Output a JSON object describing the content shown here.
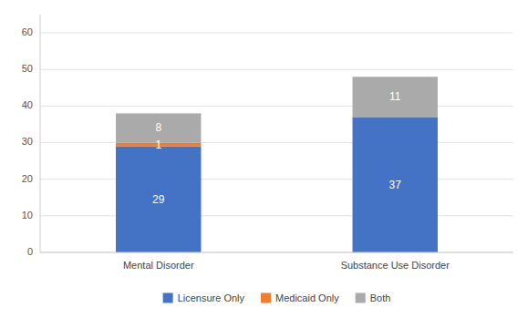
{
  "chart_data": {
    "type": "bar",
    "stacked": true,
    "categories": [
      "Mental Disorder",
      "Substance Use Disorder"
    ],
    "series": [
      {
        "name": "Licensure Only",
        "color": "#4472C4",
        "values": [
          29,
          37
        ]
      },
      {
        "name": "Medicaid Only",
        "color": "#ED7D31",
        "values": [
          1,
          0
        ]
      },
      {
        "name": "Both",
        "color": "#AAAAAA",
        "values": [
          8,
          11
        ]
      }
    ],
    "ylim": [
      0,
      65
    ],
    "yticks": [
      0,
      10,
      20,
      30,
      40,
      50,
      60
    ],
    "grid": true,
    "legend": "bottom",
    "data_labels": true
  }
}
